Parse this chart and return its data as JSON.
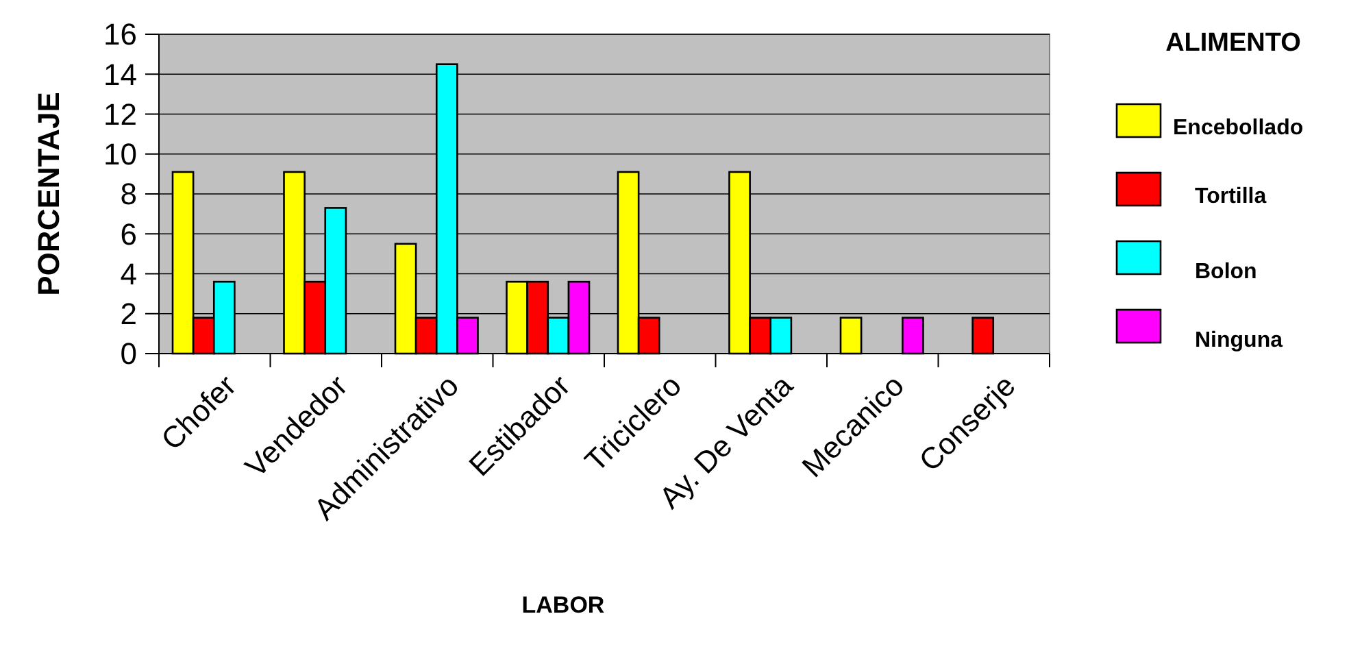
{
  "chart_data": {
    "type": "bar",
    "xlabel": "LABOR",
    "ylabel": "PORCENTAJE",
    "legend_title": "ALIMENTO",
    "categories": [
      "Chofer",
      "Vendedor",
      "Administrativo",
      "Estibador",
      "Triciclero",
      "Ay. De Venta",
      "Mecanico",
      "Conserje"
    ],
    "series": [
      {
        "name": "Encebollado",
        "color": "#ffff00",
        "values": [
          9.1,
          9.1,
          5.5,
          3.6,
          9.1,
          9.1,
          1.8,
          0
        ]
      },
      {
        "name": "Tortilla",
        "color": "#ff0000",
        "values": [
          1.8,
          3.6,
          1.8,
          3.6,
          1.8,
          1.8,
          0,
          1.8
        ]
      },
      {
        "name": "Bolon",
        "color": "#00ffff",
        "values": [
          3.6,
          7.3,
          14.5,
          1.8,
          0,
          1.8,
          0,
          0
        ]
      },
      {
        "name": "Ninguna",
        "color": "#ff00ff",
        "values": [
          0,
          0,
          1.8,
          3.6,
          0,
          0,
          1.8,
          0
        ]
      }
    ],
    "ylim": [
      0,
      16
    ],
    "yticks": [
      0,
      2,
      4,
      6,
      8,
      10,
      12,
      14,
      16
    ],
    "grid": "y",
    "legend": "right"
  }
}
